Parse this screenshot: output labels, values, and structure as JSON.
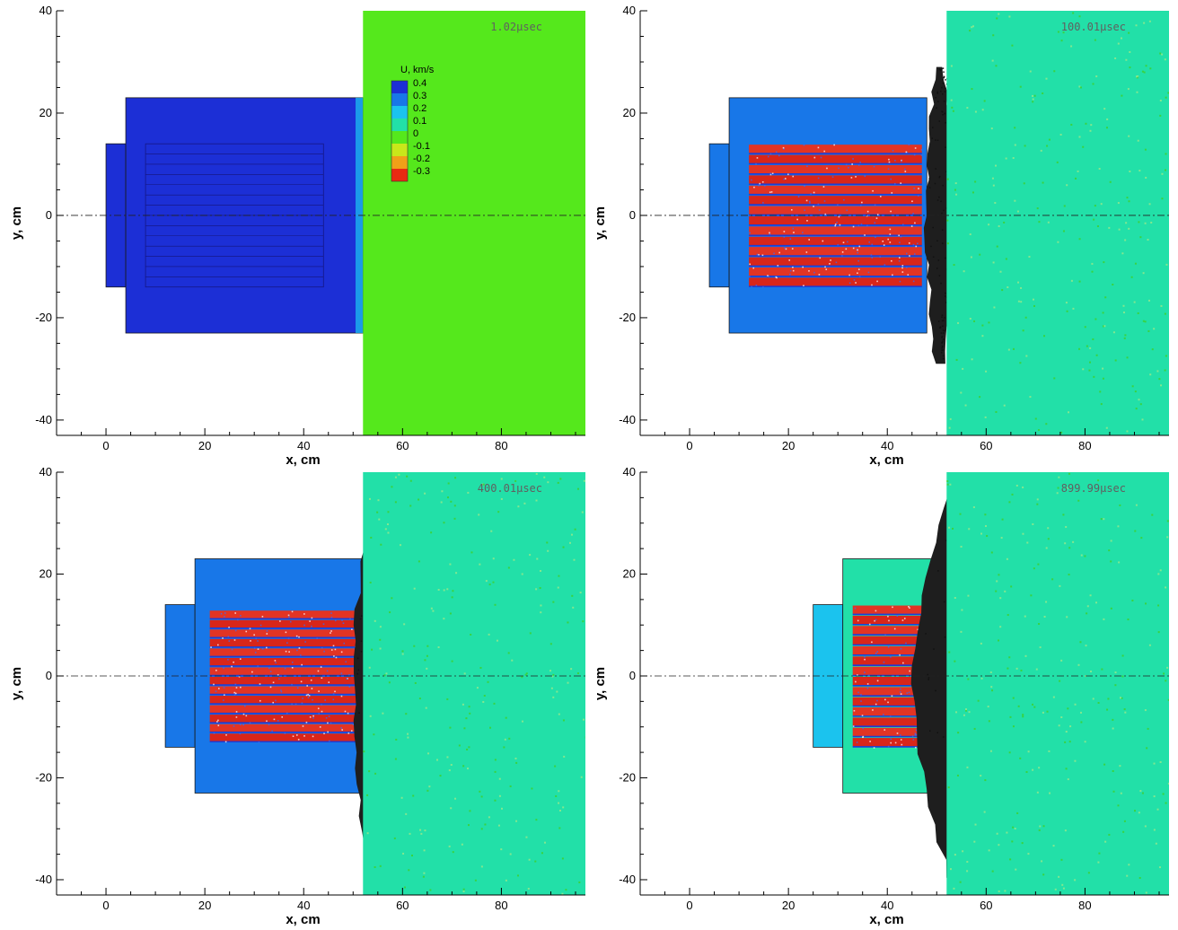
{
  "chart_data": [
    {
      "type": "heatmap",
      "panel": "top-left",
      "time_label": "1.02μsec",
      "xlabel": "x, cm",
      "ylabel": "y, cm",
      "xlim": [
        -10,
        97
      ],
      "ylim": [
        -43,
        40
      ],
      "xticks": [
        0,
        20,
        40,
        60,
        80
      ],
      "yticks": [
        -40,
        -20,
        0,
        20,
        40
      ],
      "colorbar": {
        "title": "U, km/s",
        "levels": [
          0.4,
          0.3,
          0.2,
          0.1,
          0,
          -0.1,
          -0.2,
          -0.3
        ],
        "colors": [
          "#1c2fd6",
          "#1877e8",
          "#1bc3ee",
          "#22e0a8",
          "#55e81c",
          "#c8e81a",
          "#f0a018",
          "#e82a12"
        ],
        "placement": "top-right"
      },
      "target_boundary_x": 52,
      "regions": [
        {
          "name": "rear-plate",
          "x": [
            0,
            4
          ],
          "y": [
            -14,
            14
          ],
          "u": 0.4
        },
        {
          "name": "projectile-body",
          "x": [
            4,
            52
          ],
          "y": [
            -23,
            23
          ],
          "u": 0.4
        },
        {
          "name": "target",
          "x": [
            52,
            97
          ],
          "y": [
            -43,
            40
          ],
          "u": 0
        }
      ]
    },
    {
      "type": "heatmap",
      "panel": "top-right",
      "time_label": "100.01μsec",
      "xlabel": "x, cm",
      "ylabel": "y, cm",
      "xlim": [
        -10,
        97
      ],
      "ylim": [
        -43,
        40
      ],
      "xticks": [
        0,
        20,
        40,
        60,
        80
      ],
      "yticks": [
        -40,
        -20,
        0,
        20,
        40
      ],
      "target_boundary_x": 52,
      "regions": [
        {
          "name": "rear-plate",
          "x": [
            4,
            8
          ],
          "y": [
            -14,
            14
          ],
          "u": 0.25
        },
        {
          "name": "projectile-body",
          "x": [
            8,
            48
          ],
          "y": [
            -23,
            23
          ],
          "u": 0.35
        },
        {
          "name": "rod-bundle",
          "x": [
            12,
            47
          ],
          "y": [
            -14,
            14
          ],
          "u": -0.3
        },
        {
          "name": "debris-zone",
          "x": [
            47,
            55
          ],
          "y": [
            -29,
            29
          ],
          "u": 0
        },
        {
          "name": "target",
          "x": [
            52,
            97
          ],
          "y": [
            -43,
            40
          ],
          "u": 0.05
        }
      ]
    },
    {
      "type": "heatmap",
      "panel": "bottom-left",
      "time_label": "400.01μsec",
      "xlabel": "x, cm",
      "ylabel": "y, cm",
      "xlim": [
        -10,
        97
      ],
      "ylim": [
        -43,
        40
      ],
      "xticks": [
        0,
        20,
        40,
        60,
        80
      ],
      "yticks": [
        -40,
        -20,
        0,
        20,
        40
      ],
      "target_boundary_x": 52,
      "regions": [
        {
          "name": "rear-plate",
          "x": [
            12,
            18
          ],
          "y": [
            -14,
            14
          ],
          "u": 0.25
        },
        {
          "name": "projectile-body",
          "x": [
            18,
            54
          ],
          "y": [
            -23,
            23
          ],
          "u": 0.25
        },
        {
          "name": "rod-bundle",
          "x": [
            21,
            54
          ],
          "y": [
            -13,
            13
          ],
          "u": -0.3
        },
        {
          "name": "debris-zone",
          "x": [
            49,
            61
          ],
          "y": [
            -40,
            35
          ],
          "u": 0
        },
        {
          "name": "target",
          "x": [
            52,
            97
          ],
          "y": [
            -43,
            40
          ],
          "u": 0.05
        }
      ]
    },
    {
      "type": "heatmap",
      "panel": "bottom-right",
      "time_label": "899.99μsec",
      "xlabel": "x, cm",
      "ylabel": "y, cm",
      "xlim": [
        -10,
        97
      ],
      "ylim": [
        -43,
        40
      ],
      "xticks": [
        0,
        20,
        40,
        60,
        80
      ],
      "yticks": [
        -40,
        -20,
        0,
        20,
        40
      ],
      "target_boundary_x": 52,
      "regions": [
        {
          "name": "rear-plate",
          "x": [
            25,
            31
          ],
          "y": [
            -14,
            14
          ],
          "u": 0.2
        },
        {
          "name": "projectile-body",
          "x": [
            31,
            67
          ],
          "y": [
            -23,
            23
          ],
          "u": 0.12
        },
        {
          "name": "rod-bundle",
          "x": [
            33,
            72
          ],
          "y": [
            -14,
            14
          ],
          "u": -0.3
        },
        {
          "name": "debris-zone",
          "x": [
            42,
            75
          ],
          "y": [
            -43,
            40
          ],
          "u": 0
        },
        {
          "name": "target",
          "x": [
            52,
            97
          ],
          "y": [
            -43,
            40
          ],
          "u": 0.05
        }
      ]
    }
  ]
}
